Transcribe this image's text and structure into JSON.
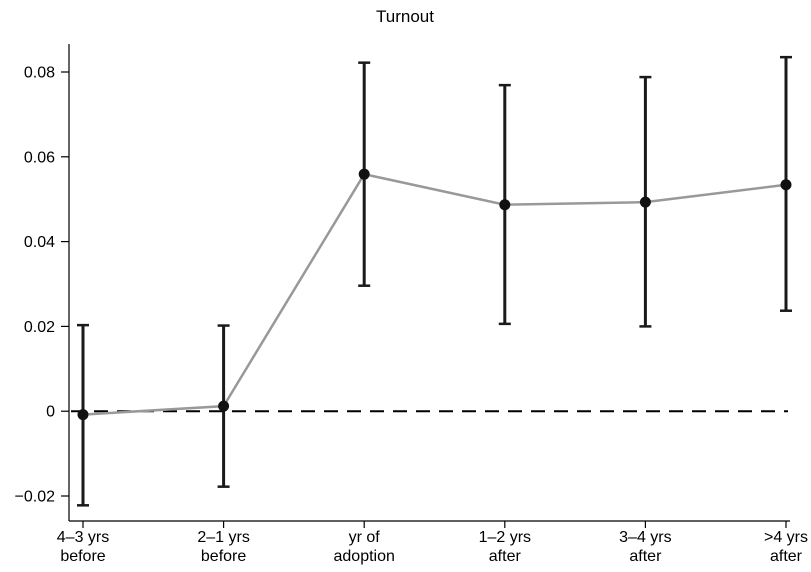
{
  "chart_data": {
    "type": "line",
    "title": "Turnout",
    "xlabel": "",
    "ylabel": "",
    "categories": [
      [
        "4–3 yrs",
        "before"
      ],
      [
        "2–1 yrs",
        "before"
      ],
      [
        "yr of",
        "adoption"
      ],
      [
        "1–2 yrs",
        "after"
      ],
      [
        "3–4 yrs",
        "after"
      ],
      [
        ">4 yrs",
        "after"
      ]
    ],
    "series": [
      {
        "values": [
          -0.0008,
          0.0012,
          0.0559,
          0.0487,
          0.0493,
          0.0534
        ],
        "ci_low": [
          -0.0222,
          -0.0178,
          0.0296,
          0.0206,
          0.02,
          0.0237
        ],
        "ci_high": [
          0.0203,
          0.0202,
          0.0822,
          0.0769,
          0.0788,
          0.0835
        ]
      }
    ],
    "yticks": [
      -0.02,
      0,
      0.02,
      0.04,
      0.06,
      0.08
    ],
    "ytick_labels": [
      "−0.02",
      "0",
      "0.02",
      "0.04",
      "0.06",
      "0.08"
    ],
    "ylim": [
      -0.024,
      0.0865
    ],
    "reference_line": {
      "y": 0,
      "style": "dashed"
    },
    "colors": {
      "line": "#999999",
      "error_bars": "#1a1a1a",
      "points": "#111111",
      "axis": "#000000"
    },
    "grid": false,
    "legend": "none"
  }
}
